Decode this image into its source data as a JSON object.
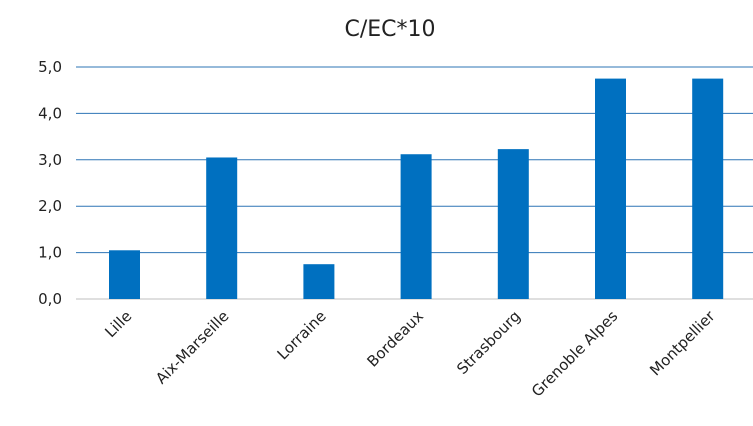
{
  "chart_data": {
    "type": "bar",
    "title": "C/EC*10",
    "categories": [
      "Lille",
      "Aix-Marseille",
      "Lorraine",
      "Bordeaux",
      "Strasbourg",
      "Grenoble Alpes",
      "Montpellier"
    ],
    "values": [
      1.05,
      3.05,
      0.75,
      3.12,
      3.23,
      4.75,
      4.75
    ],
    "ylim": [
      0,
      5
    ],
    "yticks": [
      "0,0",
      "1,0",
      "2,0",
      "3,0",
      "4,0",
      "5,0"
    ],
    "grid": true,
    "legend": "none",
    "bar_color": "#0070c0",
    "grid_color": "#2e75b6"
  }
}
